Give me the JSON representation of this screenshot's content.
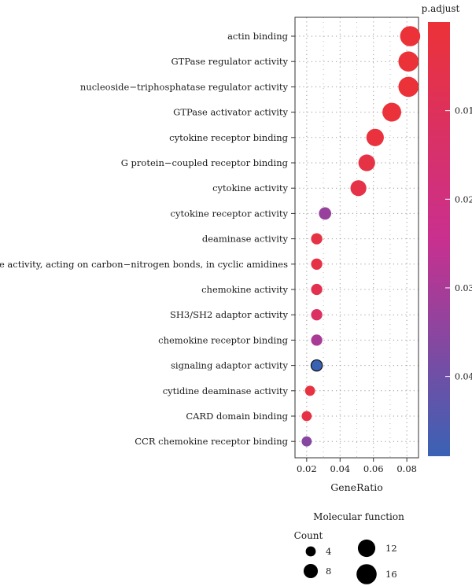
{
  "chart_data": {
    "type": "scatter",
    "xlabel": "GeneRatio",
    "xlim": [
      0.013,
      0.087
    ],
    "x_ticks": [
      "0.02",
      "0.04",
      "0.06",
      "0.08"
    ],
    "x_tick_values": [
      0.02,
      0.04,
      0.06,
      0.08
    ],
    "grid": true,
    "categories": [
      "actin binding",
      "GTPase regulator activity",
      "nucleoside−triphosphatase regulator activity",
      "GTPase activator activity",
      "cytokine receptor binding",
      "G protein−coupled receptor binding",
      "cytokine activity",
      "cytokine receptor activity",
      "deaminase activity",
      "hydrolase activity, acting on carbon−nitrogen bonds, in cyclic amidines",
      "chemokine activity",
      "SH3/SH2 adaptor activity",
      "chemokine receptor binding",
      "signaling adaptor activity",
      "cytidine deaminase activity",
      "CARD domain binding",
      "CCR chemokine receptor binding"
    ],
    "points": [
      {
        "gene_ratio": 0.082,
        "count": 16,
        "p_adjust": 0.0005
      },
      {
        "gene_ratio": 0.081,
        "count": 16,
        "p_adjust": 0.0005
      },
      {
        "gene_ratio": 0.081,
        "count": 16,
        "p_adjust": 0.0005
      },
      {
        "gene_ratio": 0.071,
        "count": 14,
        "p_adjust": 0.001
      },
      {
        "gene_ratio": 0.061,
        "count": 12,
        "p_adjust": 0.002
      },
      {
        "gene_ratio": 0.056,
        "count": 11,
        "p_adjust": 0.004
      },
      {
        "gene_ratio": 0.051,
        "count": 10,
        "p_adjust": 0.005
      },
      {
        "gene_ratio": 0.031,
        "count": 6,
        "p_adjust": 0.033
      },
      {
        "gene_ratio": 0.026,
        "count": 5,
        "p_adjust": 0.004
      },
      {
        "gene_ratio": 0.026,
        "count": 5,
        "p_adjust": 0.004
      },
      {
        "gene_ratio": 0.026,
        "count": 5,
        "p_adjust": 0.007
      },
      {
        "gene_ratio": 0.026,
        "count": 5,
        "p_adjust": 0.012
      },
      {
        "gene_ratio": 0.026,
        "count": 5,
        "p_adjust": 0.03
      },
      {
        "gene_ratio": 0.026,
        "count": 5,
        "p_adjust": 0.049
      },
      {
        "gene_ratio": 0.022,
        "count": 4,
        "p_adjust": 0.003
      },
      {
        "gene_ratio": 0.02,
        "count": 4,
        "p_adjust": 0.004
      },
      {
        "gene_ratio": 0.02,
        "count": 4,
        "p_adjust": 0.036
      }
    ],
    "color_legend": {
      "title": "p.adjust",
      "tick_values": [
        0.01,
        0.02,
        0.03,
        0.04
      ],
      "tick_labels": [
        "0.01",
        "0.02",
        "0.03",
        "0.04"
      ],
      "range": [
        0.0,
        0.049
      ],
      "low_color": "#ec3237",
      "mid_color": "#c9308f",
      "high_color": "#3a62b4"
    },
    "size_legend": {
      "subtitle": "Molecular function",
      "title": "Count",
      "values": [
        4,
        8,
        12,
        16
      ],
      "labels": [
        "4",
        "8",
        "12",
        "16"
      ]
    }
  }
}
